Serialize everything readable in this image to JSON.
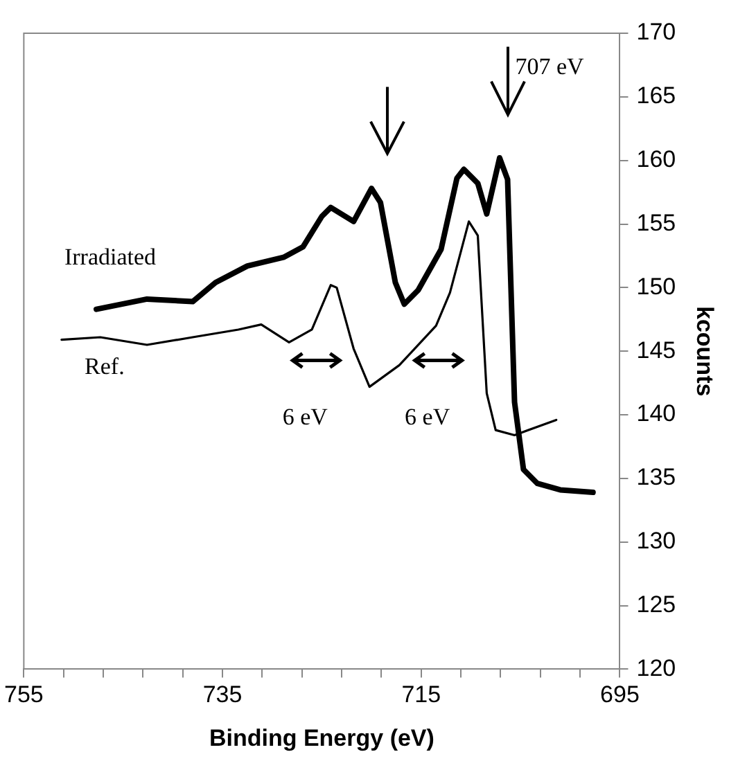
{
  "chart_data": {
    "type": "line",
    "xlabel": "Binding Energy (eV)",
    "ylabel": "kcounts",
    "xlim": [
      755,
      695
    ],
    "ylim": [
      120,
      170
    ],
    "xticks": [
      755,
      {
        "value": 751,
        "label": null
      },
      {
        "value": 747,
        "label": null
      },
      {
        "value": 743,
        "label": null
      },
      {
        "value": 739,
        "label": null
      },
      735,
      {
        "value": 731,
        "label": null
      },
      {
        "value": 727,
        "label": null
      },
      {
        "value": 723,
        "label": null
      },
      {
        "value": 719,
        "label": null
      },
      715,
      {
        "value": 711,
        "label": null
      },
      {
        "value": 707,
        "label": null
      },
      {
        "value": 703,
        "label": null
      },
      {
        "value": 699,
        "label": null
      },
      695
    ],
    "yticks": [
      120,
      125,
      130,
      135,
      140,
      145,
      150,
      155,
      160,
      165,
      170
    ],
    "grid": false,
    "legend": false,
    "marker": "none",
    "line_style": "solid",
    "series": [
      {
        "name": "Irradiated",
        "color": "#000000",
        "x": [
          747.7,
          742.6,
          738.0,
          735.7,
          732.5,
          728.8,
          726.9,
          725.0,
          724.1,
          721.8,
          720.0,
          719.1,
          717.6,
          716.7,
          715.3,
          713.0,
          711.4,
          710.7,
          709.3,
          708.4,
          707.1,
          706.3,
          705.6,
          704.7,
          703.3,
          701.0,
          697.7
        ],
        "values": [
          148.3,
          149.1,
          148.9,
          150.4,
          151.7,
          152.4,
          153.2,
          155.6,
          156.3,
          155.2,
          157.8,
          156.7,
          150.4,
          148.7,
          149.8,
          153.0,
          158.6,
          159.3,
          158.2,
          155.8,
          160.2,
          158.5,
          141.0,
          135.7,
          134.6,
          134.1,
          133.9
        ]
      },
      {
        "name": "Ref.",
        "color": "#000000",
        "x": [
          751.2,
          747.3,
          742.6,
          738.0,
          733.4,
          731.1,
          728.3,
          726.0,
          724.1,
          723.5,
          721.8,
          720.2,
          717.2,
          713.5,
          712.1,
          710.2,
          709.3,
          708.4,
          707.5,
          705.6,
          701.4
        ],
        "values": [
          145.9,
          146.1,
          145.5,
          146.1,
          146.7,
          147.1,
          145.7,
          146.7,
          150.2,
          150.0,
          145.2,
          142.2,
          143.9,
          147.0,
          149.6,
          155.2,
          154.1,
          141.7,
          138.8,
          138.4,
          139.6
        ]
      }
    ],
    "annotations": [
      "707 eV",
      "6 eV",
      "6 eV"
    ]
  }
}
